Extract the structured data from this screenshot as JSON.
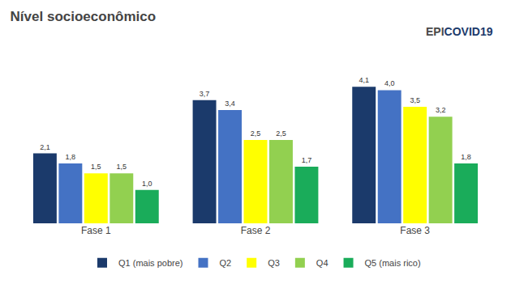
{
  "chart_data": {
    "type": "bar",
    "title": "Nível socioeconômico",
    "categories": [
      "Fase 1",
      "Fase 2",
      "Fase 3"
    ],
    "series": [
      {
        "name": "Q1 (mais pobre)",
        "color": "#1b3a6b",
        "values": [
          2.1,
          3.7,
          4.1
        ],
        "value_labels": [
          "2,1",
          "3,7",
          "4,1"
        ]
      },
      {
        "name": "Q2",
        "color": "#4472c4",
        "values": [
          1.8,
          3.4,
          4.0
        ],
        "value_labels": [
          "1,8",
          "3,4",
          "4,0"
        ]
      },
      {
        "name": "Q3",
        "color": "#ffff00",
        "values": [
          1.5,
          2.5,
          3.5
        ],
        "value_labels": [
          "1,5",
          "2,5",
          "3,5"
        ]
      },
      {
        "name": "Q4",
        "color": "#92d050",
        "values": [
          1.5,
          2.5,
          3.2
        ],
        "value_labels": [
          "1,5",
          "2,5",
          "3,2"
        ]
      },
      {
        "name": "Q5 (mais rico)",
        "color": "#1aac5a",
        "values": [
          1.0,
          1.7,
          1.8
        ],
        "value_labels": [
          "1,0",
          "1,7",
          "1,8"
        ]
      }
    ],
    "annotations": [
      {
        "text": "EPI",
        "color": "#4a4a4a"
      },
      {
        "text": "COVID19",
        "color": "#1b3a6b"
      }
    ],
    "ylim": [
      0,
      5.2
    ],
    "tick_labels": "x",
    "grid": false,
    "legend": "bottom",
    "data_labels": true
  }
}
